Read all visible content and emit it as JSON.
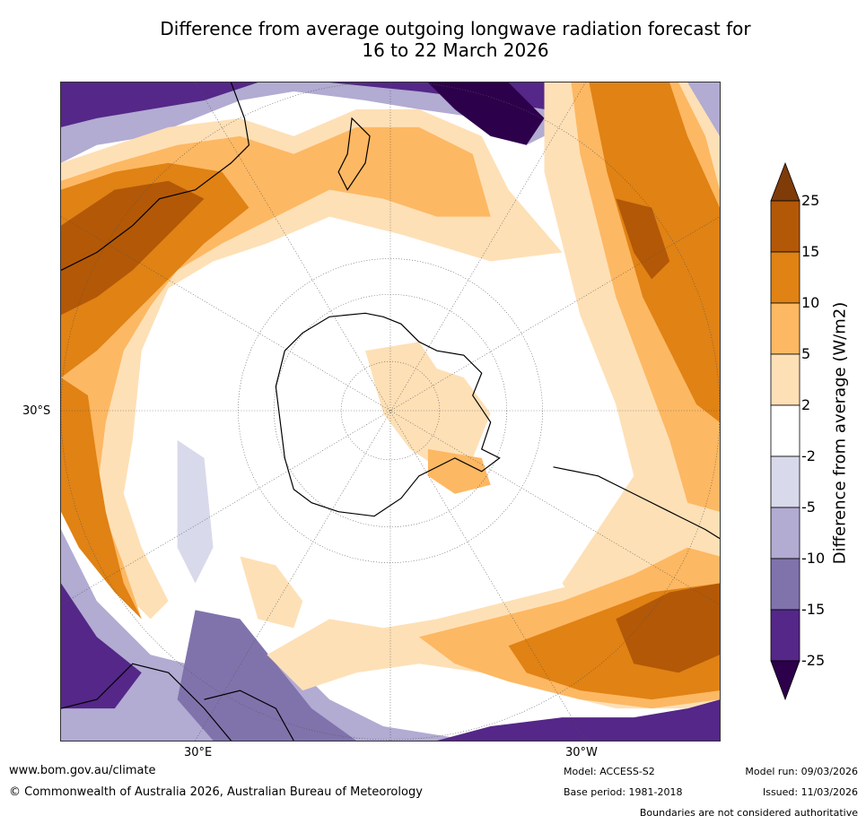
{
  "title": {
    "line1": "Difference from average outgoing longwave radiation forecast for",
    "line2": "16 to 22 March 2026"
  },
  "map": {
    "lat_label": "30°S",
    "lon_label_east": "30°E",
    "lon_label_west": "30°W",
    "colors": {
      "pos_25": "#7f3b08",
      "pos_15": "#b35806",
      "pos_10": "#e08214",
      "pos_5": "#fdb863",
      "pos_2": "#fee0b6",
      "neutral": "#ffffff",
      "neg_2": "#d8daeb",
      "neg_5": "#b2abd2",
      "neg_10": "#8073ac",
      "neg_15": "#542788",
      "neg_25": "#2d004b"
    }
  },
  "colorbar": {
    "title": "Difference from average (W/m2)",
    "ticks": [
      "25",
      "15",
      "10",
      "5",
      "2",
      "-2",
      "-5",
      "-10",
      "-15",
      "-25"
    ]
  },
  "footer": {
    "website": "www.bom.gov.au/climate",
    "copyright": "© Commonwealth of Australia 2026, Australian Bureau of Meteorology",
    "model": "Model: ACCESS-S2",
    "base_period": "Base period: 1981-2018",
    "model_run": "Model run: 09/03/2026",
    "issued": "Issued: 11/03/2026",
    "disclaimer": "Boundaries are not considered authoritative"
  }
}
